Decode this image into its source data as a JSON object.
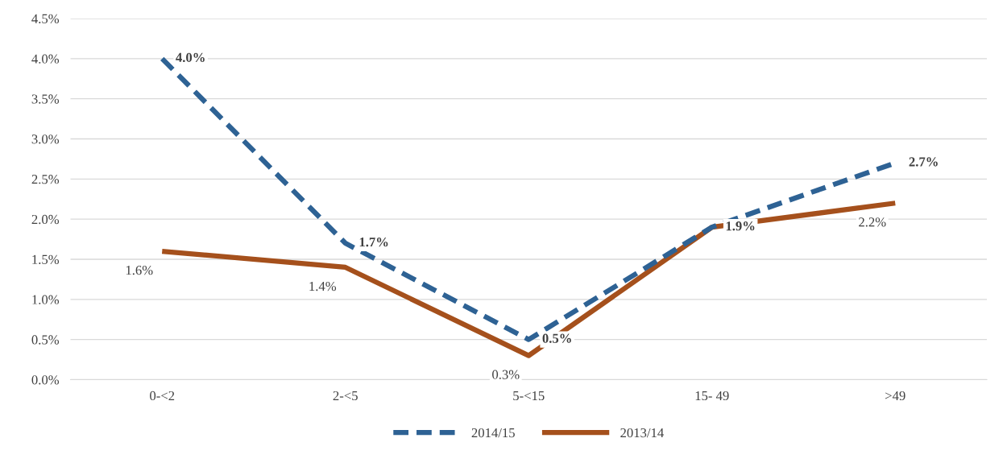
{
  "chart_data": {
    "type": "line",
    "categories": [
      "0-<2",
      "2-<5",
      "5-<15",
      "15- 49",
      ">49"
    ],
    "series": [
      {
        "name": "2014/15",
        "color": "#2e6294",
        "line_style": "dashed",
        "values": [
          4.0,
          1.7,
          0.5,
          1.9,
          2.7
        ],
        "value_labels": [
          "4.0%",
          "1.7%",
          "0.5%",
          "1.9%",
          "2.7%"
        ]
      },
      {
        "name": "2013/14",
        "color": "#a5501c",
        "line_style": "solid",
        "values": [
          1.6,
          1.4,
          0.3,
          1.9,
          2.2
        ],
        "value_labels": [
          "1.6%",
          "1.4%",
          "0.3%",
          null,
          "2.2%"
        ]
      }
    ],
    "ylim": [
      0,
      4.5
    ],
    "yticks": [
      {
        "value": 0,
        "label": "0.0%"
      },
      {
        "value": 0.5,
        "label": "0.5%"
      },
      {
        "value": 1.0,
        "label": "1.0%"
      },
      {
        "value": 1.5,
        "label": "1.5%"
      },
      {
        "value": 2.0,
        "label": "2.0%"
      },
      {
        "value": 2.5,
        "label": "2.5%"
      },
      {
        "value": 3.0,
        "label": "3.0%"
      },
      {
        "value": 3.5,
        "label": "3.5%"
      },
      {
        "value": 4.0,
        "label": "4.0%"
      },
      {
        "value": 4.5,
        "label": "4.5%"
      }
    ],
    "grid": "y",
    "legend": "bottom",
    "marker": "none"
  }
}
